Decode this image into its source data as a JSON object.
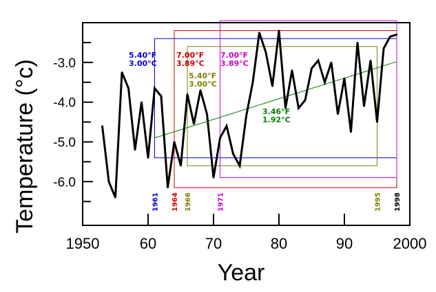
{
  "chart_data": {
    "type": "line",
    "xlabel": "Year",
    "ylabel": "Temperature (°c)",
    "xlim": [
      1950,
      2000
    ],
    "ylim": [
      -7.1,
      -2.0
    ],
    "xticks": [
      1950,
      1960,
      1970,
      1980,
      1990,
      2000
    ],
    "xtick_labels": [
      "1950",
      "60",
      "70",
      "80",
      "90",
      "2000"
    ],
    "yticks": [
      -3.0,
      -4.0,
      -5.0,
      -6.0
    ],
    "ytick_labels": [
      "-3.0",
      "-4.0",
      "-5.0",
      "-6.0"
    ],
    "series": [
      {
        "color": "#000000",
        "x": [
          1953,
          1954,
          1955,
          1956,
          1957,
          1958,
          1959,
          1960,
          1961,
          1962,
          1963,
          1964,
          1965,
          1966,
          1967,
          1968,
          1969,
          1970,
          1971,
          1972,
          1973,
          1974,
          1975,
          1976,
          1977,
          1978,
          1979,
          1980,
          1981,
          1982,
          1983,
          1984,
          1985,
          1986,
          1987,
          1988,
          1989,
          1990,
          1991,
          1992,
          1993,
          1994,
          1995,
          1996,
          1997,
          1998
        ],
        "y": [
          -4.6,
          -6.0,
          -6.4,
          -3.25,
          -3.65,
          -5.2,
          -4.0,
          -5.4,
          -3.65,
          -3.85,
          -6.15,
          -5.0,
          -5.6,
          -3.8,
          -4.55,
          -3.7,
          -4.3,
          -5.9,
          -4.9,
          -4.6,
          -5.3,
          -5.6,
          -4.35,
          -3.5,
          -2.25,
          -2.75,
          -3.6,
          -2.2,
          -4.15,
          -3.2,
          -4.15,
          -3.95,
          -3.15,
          -2.95,
          -3.5,
          -3.0,
          -4.3,
          -3.4,
          -4.75,
          -2.5,
          -4.1,
          -2.95,
          -4.5,
          -2.65,
          -2.35,
          -2.3
        ]
      }
    ],
    "trend": {
      "color": "#008000",
      "x": [
        1961,
        1998
      ],
      "y": [
        -4.9,
        -2.98
      ],
      "label_f": "3.46°F",
      "label_c": "1.92°C"
    },
    "annotations": [
      {
        "color": "#0000cc",
        "start_year": 1961,
        "end_year": 1998,
        "low": -5.4,
        "high": -2.4,
        "label_f": "5.40°F",
        "label_c": "3.00°C",
        "year_label": "1961"
      },
      {
        "color": "#cc0000",
        "start_year": 1964,
        "end_year": 1998,
        "low": -6.15,
        "high": -2.2,
        "label_f": "7.00°F",
        "label_c": "3.89°C",
        "year_label": "1964"
      },
      {
        "color": "#808000",
        "start_year": 1966,
        "end_year": 1995,
        "low": -5.6,
        "high": -2.6,
        "label_f": "5.40°F",
        "label_c": "3.00°C",
        "year_label": "1966"
      },
      {
        "color": "#cc00cc",
        "start_year": 1971,
        "end_year": 1998,
        "low": -5.9,
        "high": -1.95,
        "label_f": "7.00°F",
        "label_c": "3.89°C",
        "year_label": "1971"
      }
    ],
    "extra_year_labels": [
      {
        "year_label": "1995",
        "color": "#808000",
        "year": 1995
      },
      {
        "year_label": "1998",
        "color": "#000000",
        "year": 1998
      }
    ],
    "grid": false,
    "legend": "none"
  }
}
